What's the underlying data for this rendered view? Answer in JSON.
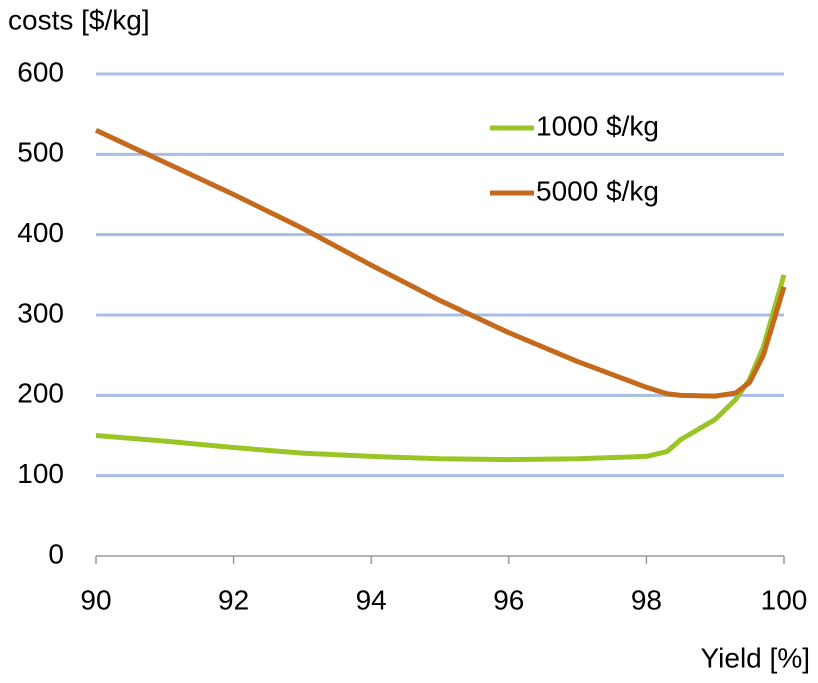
{
  "chart_data": {
    "type": "line",
    "y_label": "costs [$/kg]",
    "x_label": "Yield [%]",
    "xlim": [
      90,
      100
    ],
    "xticks": [
      90,
      92,
      94,
      96,
      98,
      100
    ],
    "ylim": [
      0,
      600
    ],
    "yticks": [
      0,
      100,
      200,
      300,
      400,
      500,
      600
    ],
    "grid": true,
    "legend": "upper-right",
    "x": [
      90,
      91,
      92,
      93,
      94,
      95,
      96,
      97,
      98,
      98.3,
      98.5,
      99,
      99.3,
      99.5,
      99.7,
      100
    ],
    "series": [
      {
        "name": "1000 $/kg",
        "color": "#99c527",
        "values": [
          150,
          143,
          135,
          128,
          124,
          121,
          120,
          121,
          124,
          130,
          145,
          170,
          195,
          220,
          260,
          350
        ]
      },
      {
        "name": "5000 $/kg",
        "color": "#c56a1d",
        "values": [
          530,
          490,
          450,
          408,
          362,
          318,
          278,
          242,
          210,
          202,
          200,
          199,
          203,
          216,
          250,
          335
        ]
      }
    ]
  }
}
